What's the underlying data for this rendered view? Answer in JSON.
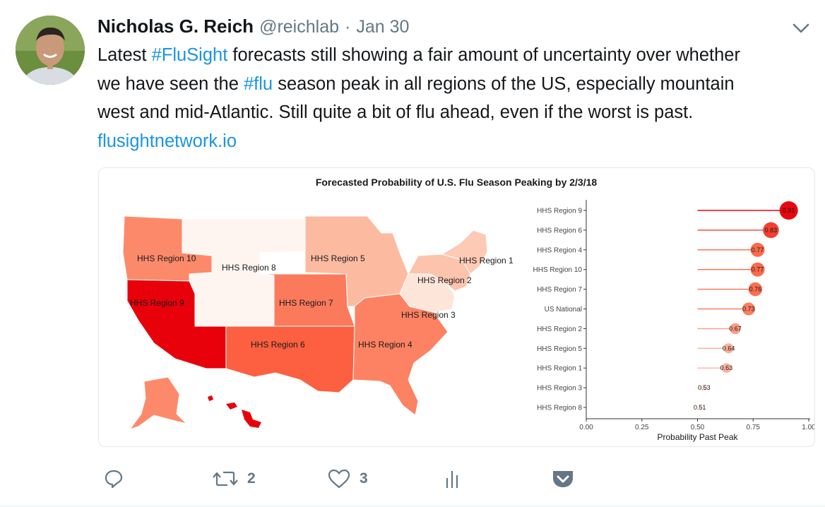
{
  "tweet": {
    "author_name": "Nicholas G. Reich",
    "handle": "@reichlab",
    "separator": "·",
    "date": "Jan 30",
    "text_lines": [
      [
        {
          "t": "Latest ",
          "k": "text"
        },
        {
          "t": "#FluSight",
          "k": "hashtag"
        },
        {
          "t": " forecasts still showing a fair amount of uncertainty over whether",
          "k": "text"
        }
      ],
      [
        {
          "t": "we have seen the ",
          "k": "text"
        },
        {
          "t": "#flu",
          "k": "hashtag"
        },
        {
          "t": " season peak in all regions of the US, especially mountain",
          "k": "text"
        }
      ],
      [
        {
          "t": "west and mid-Atlantic. Still quite a bit of flu ahead, even if the worst is past.",
          "k": "text"
        }
      ],
      [
        {
          "t": "flusightnetwork.io",
          "k": "link"
        }
      ]
    ],
    "link_url_text": "flusightnetwork.io"
  },
  "actions": {
    "reply_icon": "reply-icon",
    "retweet_icon": "retweet-icon",
    "retweet_count": "2",
    "like_icon": "heart-icon",
    "like_count": "3",
    "analytics_icon": "analytics-icon",
    "pocket_icon": "pocket-icon"
  },
  "colors": {
    "link": "#1b95e0",
    "muted": "#657786",
    "region9": "#e8000b",
    "high": "#fb6a4a",
    "low": "#fff5f0"
  },
  "chart_data": {
    "type": "scatter",
    "title": "Forecasted Probability of U.S. Flu Season Peaking by 2/3/18",
    "xlabel": "Probability Past Peak",
    "ylabel": "",
    "xlim": [
      0,
      1
    ],
    "xticks": [
      "0.00",
      "0.25",
      "0.50",
      "0.75",
      "1.00"
    ],
    "categories": [
      "HHS Region 9",
      "HHS Region 6",
      "HHS Region 4",
      "HHS Region 10",
      "HHS Region 7",
      "US National",
      "HHS Region 2",
      "HHS Region 5",
      "HHS Region 1",
      "HHS Region 3",
      "HHS Region 8"
    ],
    "values": [
      0.91,
      0.83,
      0.77,
      0.77,
      0.76,
      0.73,
      0.67,
      0.64,
      0.63,
      0.53,
      0.51
    ],
    "value_labels": [
      "0.91",
      "0.83",
      "0.77",
      "0.77",
      "0.76",
      "0.73",
      "0.67",
      "0.64",
      "0.63",
      "0.53",
      "0.51"
    ],
    "baseline": 0.5,
    "map_labels": {
      "r10": "HHS Region 10",
      "r8": "HHS Region 8",
      "r5": "HHS Region 5",
      "r1": "HHS Region 1",
      "r2": "HHS Region 2",
      "r9": "HHS Region 9",
      "r7": "HHS Region 7",
      "r3": "HHS Region 3",
      "r6": "HHS Region 6",
      "r4": "HHS Region 4"
    }
  }
}
